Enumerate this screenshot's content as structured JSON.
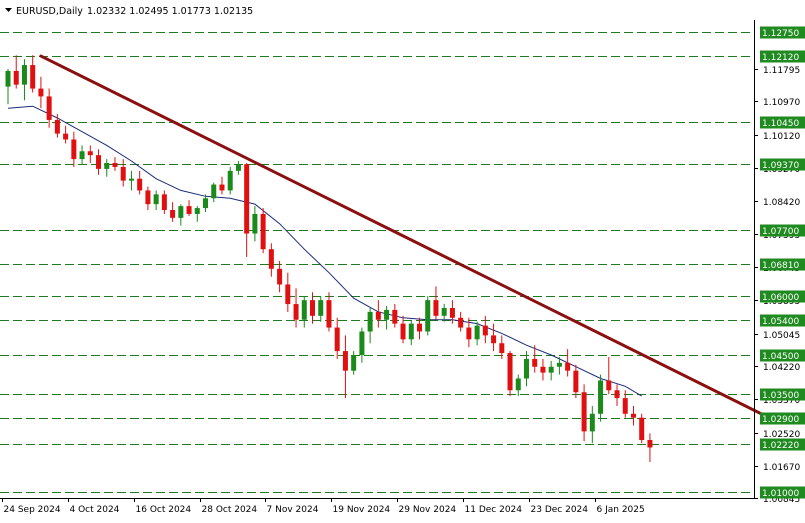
{
  "header": {
    "menu_icon": "triangle-down-icon",
    "symbol": "EURUSD,Daily",
    "ohlc": "1.02332 1.02495 1.01773 1.02135"
  },
  "colors": {
    "background": "#ffffff",
    "bull": "#1a8a1a",
    "bear": "#e01010",
    "level_line": "#1e7a1e",
    "level_label_bg": "#1f8a1f",
    "trendline": "#8b0f0f",
    "moving_average": "#1a2a7a",
    "axis": "#000000"
  },
  "chart_data": {
    "type": "candlestick",
    "symbol": "EURUSD",
    "timeframe": "Daily",
    "ylim": [
      1.0085,
      1.1305
    ],
    "y_ticks": [
      "1.11795",
      "1.10970",
      "1.10120",
      "1.09270",
      "1.08420",
      "1.07595",
      "1.06745",
      "1.05895",
      "1.05045",
      "1.04220",
      "1.03370",
      "1.02520",
      "1.01670",
      "1.00845"
    ],
    "x_ticks": [
      "24 Sep 2024",
      "4 Oct 2024",
      "16 Oct 2024",
      "28 Oct 2024",
      "7 Nov 2024",
      "19 Nov 2024",
      "29 Nov 2024",
      "11 Dec 2024",
      "23 Dec 2024",
      "6 Jan 2025"
    ],
    "x_tick_index": [
      0,
      8,
      16,
      24,
      32,
      40,
      48,
      56,
      64,
      72
    ],
    "levels": [
      "1.12750",
      "1.12120",
      "1.10450",
      "1.09370",
      "1.07700",
      "1.06810",
      "1.06000",
      "1.05400",
      "1.04500",
      "1.03500",
      "1.02900",
      "1.02220",
      "1.01000"
    ],
    "trendline": {
      "start_index": 4,
      "start_price": 1.1213,
      "end_index": 92,
      "end_price": 1.0295
    },
    "ohlc": [
      [
        1.1135,
        1.118,
        1.109,
        1.1175
      ],
      [
        1.1175,
        1.1215,
        1.113,
        1.114
      ],
      [
        1.114,
        1.1205,
        1.11,
        1.119
      ],
      [
        1.119,
        1.1215,
        1.112,
        1.113
      ],
      [
        1.113,
        1.116,
        1.108,
        1.111
      ],
      [
        1.111,
        1.113,
        1.103,
        1.105
      ],
      [
        1.105,
        1.1065,
        1.1005,
        1.1015
      ],
      [
        1.1015,
        1.1035,
        1.099,
        1.1
      ],
      [
        1.1,
        1.102,
        1.093,
        1.095
      ],
      [
        1.095,
        1.0985,
        1.0935,
        1.097
      ],
      [
        1.097,
        1.0985,
        1.094,
        1.096
      ],
      [
        1.096,
        1.0975,
        1.091,
        1.0925
      ],
      [
        1.0925,
        1.095,
        1.0905,
        1.094
      ],
      [
        1.094,
        1.0955,
        1.092,
        1.093
      ],
      [
        1.093,
        1.095,
        1.088,
        1.0895
      ],
      [
        1.0895,
        1.092,
        1.087,
        1.09
      ],
      [
        1.09,
        1.092,
        1.086,
        1.087
      ],
      [
        1.087,
        1.088,
        1.082,
        1.0835
      ],
      [
        1.0835,
        1.087,
        1.082,
        1.086
      ],
      [
        1.086,
        1.087,
        1.081,
        1.082
      ],
      [
        1.082,
        1.084,
        1.079,
        1.08
      ],
      [
        1.08,
        1.0835,
        1.078,
        1.083
      ],
      [
        1.083,
        1.0845,
        1.0805,
        1.081
      ],
      [
        1.081,
        1.083,
        1.079,
        1.0825
      ],
      [
        1.0825,
        1.086,
        1.0815,
        1.085
      ],
      [
        1.085,
        1.089,
        1.084,
        1.0885
      ],
      [
        1.0885,
        1.0905,
        1.086,
        1.087
      ],
      [
        1.087,
        1.093,
        1.086,
        1.092
      ],
      [
        1.092,
        1.0945,
        1.091,
        1.0937
      ],
      [
        1.0937,
        1.094,
        1.07,
        1.076
      ],
      [
        1.076,
        1.083,
        1.074,
        1.081
      ],
      [
        1.081,
        1.0825,
        1.071,
        1.072
      ],
      [
        1.072,
        1.0735,
        1.065,
        1.067
      ],
      [
        1.067,
        1.069,
        1.061,
        1.063
      ],
      [
        1.063,
        1.066,
        1.056,
        1.058
      ],
      [
        1.058,
        1.062,
        1.052,
        1.054
      ],
      [
        1.054,
        1.06,
        1.052,
        1.059
      ],
      [
        1.059,
        1.061,
        1.053,
        1.055
      ],
      [
        1.055,
        1.06,
        1.0535,
        1.059
      ],
      [
        1.059,
        1.061,
        1.051,
        1.052
      ],
      [
        1.052,
        1.0545,
        1.044,
        1.046
      ],
      [
        1.046,
        1.05,
        1.034,
        1.041
      ],
      [
        1.041,
        1.046,
        1.04,
        1.045
      ],
      [
        1.045,
        1.052,
        1.043,
        1.051
      ],
      [
        1.051,
        1.057,
        1.048,
        1.056
      ],
      [
        1.056,
        1.059,
        1.052,
        1.054
      ],
      [
        1.054,
        1.0575,
        1.0515,
        1.0565
      ],
      [
        1.0565,
        1.058,
        1.052,
        1.053
      ],
      [
        1.053,
        1.055,
        1.048,
        1.049
      ],
      [
        1.049,
        1.054,
        1.0475,
        1.053
      ],
      [
        1.053,
        1.0545,
        1.049,
        1.051
      ],
      [
        1.051,
        1.06,
        1.05,
        1.059
      ],
      [
        1.059,
        1.0625,
        1.054,
        1.055
      ],
      [
        1.055,
        1.058,
        1.0535,
        1.057
      ],
      [
        1.057,
        1.059,
        1.053,
        1.0545
      ],
      [
        1.0545,
        1.056,
        1.051,
        1.052
      ],
      [
        1.052,
        1.0545,
        1.047,
        1.049
      ],
      [
        1.049,
        1.0535,
        1.0475,
        1.0525
      ],
      [
        1.0525,
        1.055,
        1.048,
        1.05
      ],
      [
        1.05,
        1.053,
        1.046,
        1.048
      ],
      [
        1.048,
        1.05,
        1.044,
        1.0455
      ],
      [
        1.0455,
        1.046,
        1.0345,
        1.036
      ],
      [
        1.036,
        1.04,
        1.0345,
        1.039
      ],
      [
        1.039,
        1.046,
        1.037,
        1.044
      ],
      [
        1.044,
        1.0475,
        1.0405,
        1.042
      ],
      [
        1.042,
        1.044,
        1.0385,
        1.0405
      ],
      [
        1.0405,
        1.0435,
        1.0385,
        1.042
      ],
      [
        1.042,
        1.0445,
        1.04,
        1.043
      ],
      [
        1.043,
        1.0465,
        1.0395,
        1.041
      ],
      [
        1.041,
        1.0425,
        1.034,
        1.0355
      ],
      [
        1.0355,
        1.0375,
        1.023,
        1.0255
      ],
      [
        1.0255,
        1.032,
        1.0225,
        1.03
      ],
      [
        1.03,
        1.04,
        1.028,
        1.0385
      ],
      [
        1.0385,
        1.0445,
        1.035,
        1.036
      ],
      [
        1.036,
        1.0375,
        1.032,
        1.034
      ],
      [
        1.034,
        1.036,
        1.029,
        1.03
      ],
      [
        1.03,
        1.032,
        1.027,
        1.029
      ],
      [
        1.029,
        1.03,
        1.0225,
        1.0233
      ],
      [
        1.0233,
        1.025,
        1.0177,
        1.0214
      ]
    ],
    "moving_average": [
      [
        0,
        1.108
      ],
      [
        3,
        1.1085
      ],
      [
        6,
        1.1055
      ],
      [
        9,
        1.102
      ],
      [
        12,
        1.0985
      ],
      [
        15,
        1.0945
      ],
      [
        18,
        1.09
      ],
      [
        21,
        1.087
      ],
      [
        24,
        1.0855
      ],
      [
        27,
        1.085
      ],
      [
        30,
        1.0835
      ],
      [
        33,
        1.0785
      ],
      [
        36,
        1.072
      ],
      [
        39,
        1.066
      ],
      [
        42,
        1.0595
      ],
      [
        45,
        1.056
      ],
      [
        48,
        1.0545
      ],
      [
        51,
        1.054
      ],
      [
        54,
        1.054
      ],
      [
        57,
        1.053
      ],
      [
        60,
        1.0505
      ],
      [
        63,
        1.0475
      ],
      [
        66,
        1.045
      ],
      [
        69,
        1.042
      ],
      [
        72,
        1.039
      ],
      [
        75,
        1.037
      ],
      [
        77,
        1.0345
      ]
    ]
  }
}
